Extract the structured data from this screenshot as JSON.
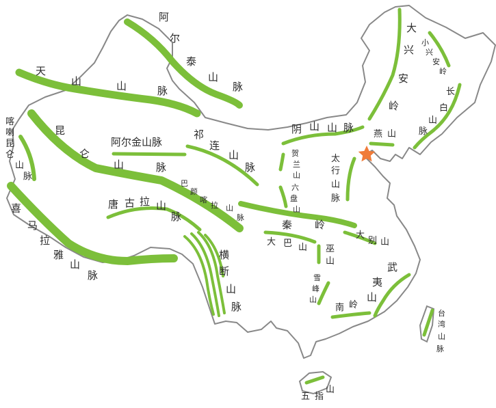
{
  "map": {
    "colors": {
      "ranges": "#7cbf3a",
      "border": "#888888",
      "capital": "#f07c3a",
      "text": "#2b2b2b",
      "background": "#ffffff"
    },
    "capital_icon": "star-icon",
    "labels": {
      "altai": [
        "阿",
        "尔",
        "泰",
        "山",
        "脉"
      ],
      "tianshan": [
        "天",
        "山",
        "山",
        "脉"
      ],
      "karakoram": [
        "喀",
        "喇",
        "昆",
        "仑",
        "山",
        "脉"
      ],
      "kunlun": [
        "昆",
        "仑",
        "山",
        "脉"
      ],
      "altun": "阿尔金山脉",
      "qilian": [
        "祁",
        "连",
        "山",
        "脉"
      ],
      "bayan_har": [
        "巴",
        "颜",
        "喀",
        "拉",
        "山",
        "脉"
      ],
      "tanggula": [
        "唐",
        "古",
        "拉",
        "山",
        "脉"
      ],
      "himalaya": [
        "喜",
        "马",
        "拉",
        "雅",
        "山",
        "脉"
      ],
      "hengduan": [
        "横",
        "断",
        "山",
        "脉"
      ],
      "greater_khingan": [
        "大",
        "兴",
        "安",
        "岭"
      ],
      "lesser_khingan": [
        "小",
        "兴",
        "安",
        "岭"
      ],
      "changbai": [
        "长",
        "白",
        "山",
        "脉"
      ],
      "yinshan": [
        "阴",
        "山",
        "山",
        "脉"
      ],
      "yanshan": [
        "燕",
        "山"
      ],
      "helan": [
        "贺",
        "兰",
        "山"
      ],
      "taihang": [
        "太",
        "行",
        "山",
        "脉"
      ],
      "liupan": [
        "六",
        "盘",
        "山"
      ],
      "qinling": [
        "秦",
        "岭"
      ],
      "dabie": [
        "大",
        "别",
        "山"
      ],
      "daba": [
        "大",
        "巴",
        "山"
      ],
      "wushan": [
        "巫",
        "山"
      ],
      "wuyi": [
        "武",
        "夷",
        "山"
      ],
      "xuefeng": [
        "雪",
        "峰",
        "山"
      ],
      "nanling": [
        "南",
        "岭"
      ],
      "taiwan": [
        "台",
        "湾",
        "山",
        "脉"
      ],
      "wuzhi": [
        "五",
        "指",
        "山"
      ]
    }
  }
}
